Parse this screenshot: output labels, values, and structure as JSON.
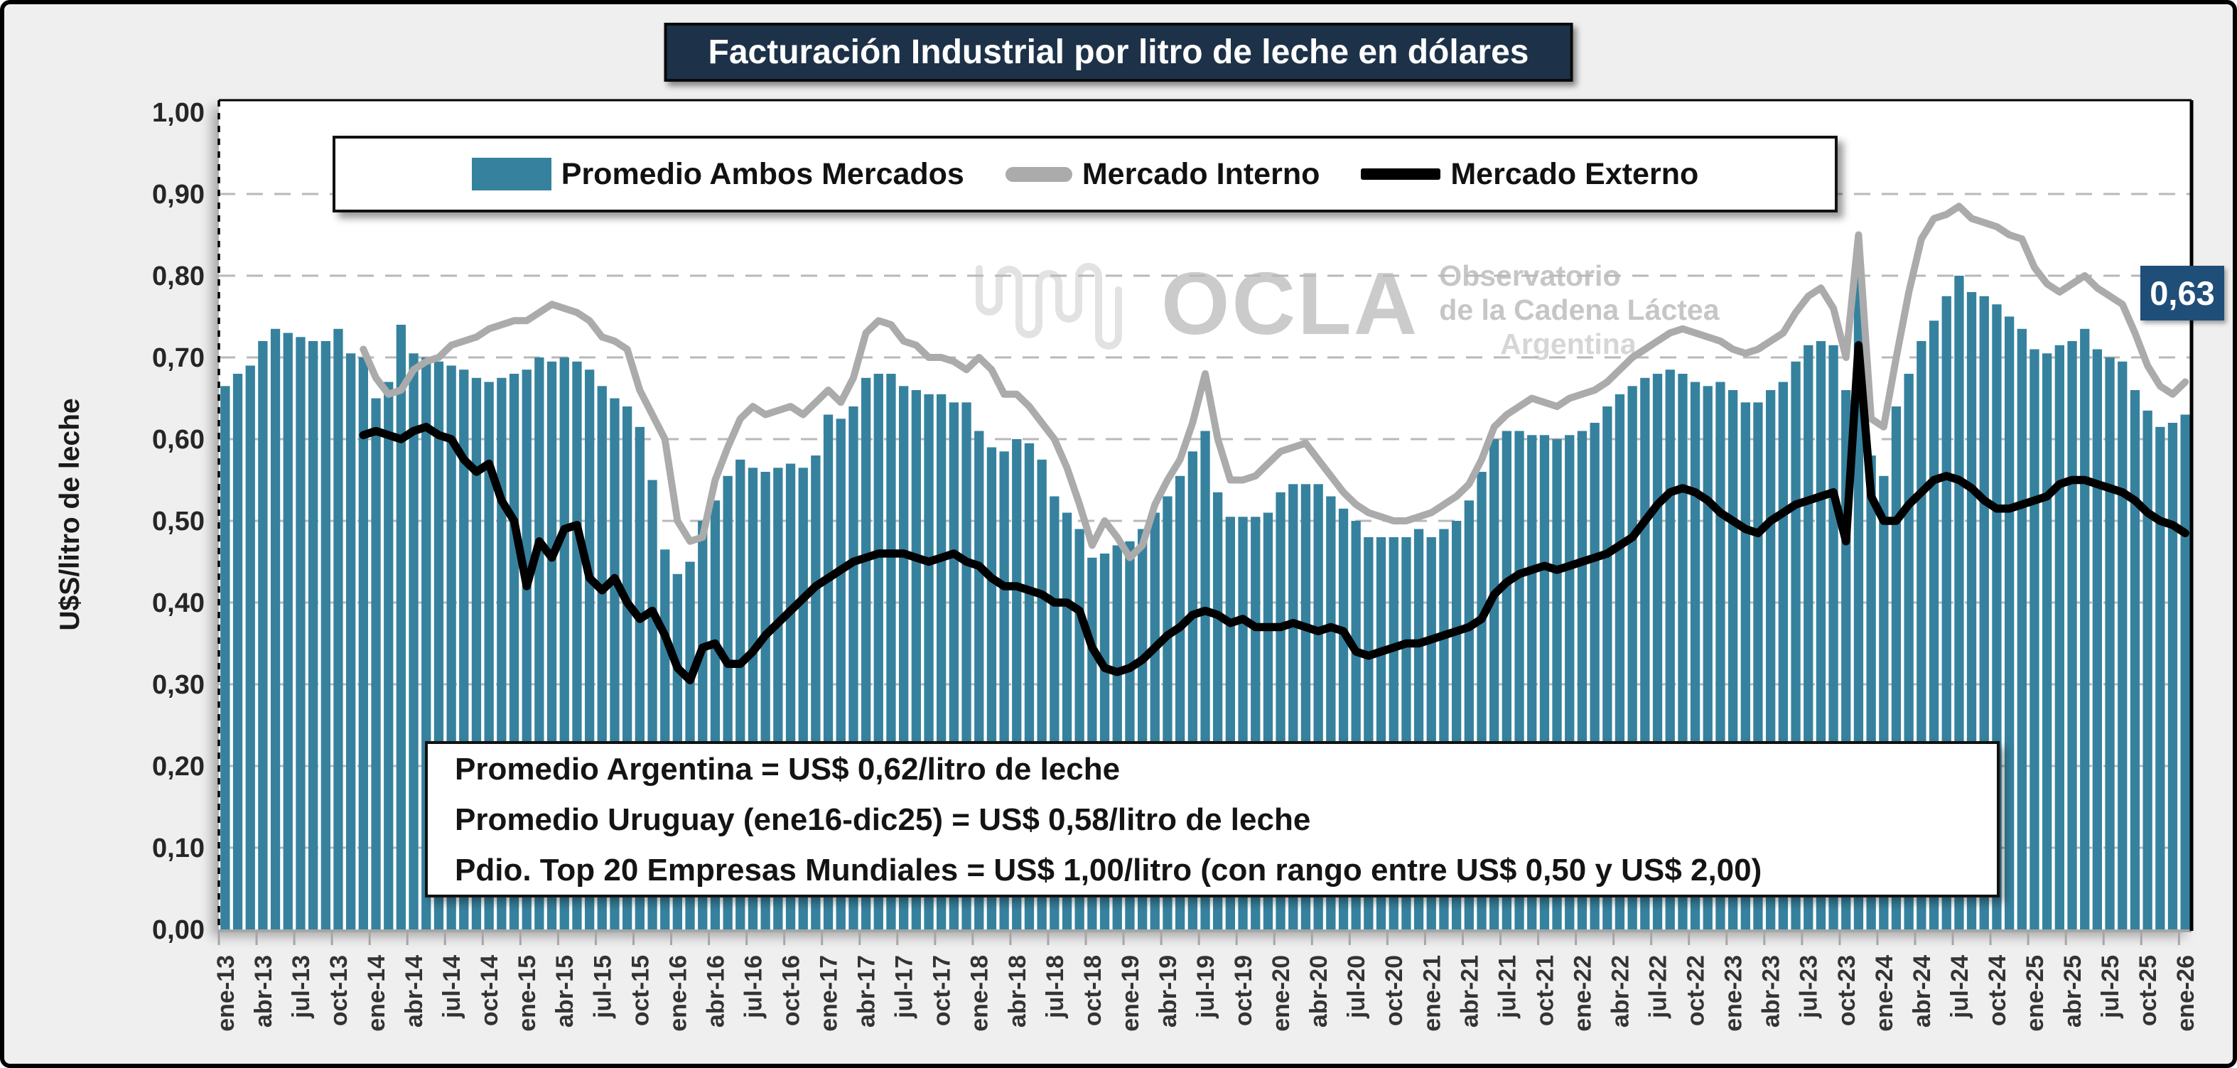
{
  "title": "Facturación Industrial por litro de leche en dólares",
  "watermark": {
    "acronym": "OCLA",
    "line1": "Observatorio",
    "line2": "de la Cadena Láctea",
    "line3": "Argentina"
  },
  "annotation_box": {
    "line1": "Promedio Argentina = US$ 0,62/litro de leche",
    "line2": "Promedio Uruguay (ene16-dic25) = US$ 0,58/litro de leche",
    "line3": "Pdio. Top 20 Empresas Mundiales = US$ 1,00/litro (con rango entre US$ 0,50 y US$ 2,00)"
  },
  "last_value_label": "0,63",
  "colors": {
    "bar": "#36829E",
    "line_interno": "#ABABAB",
    "line_externo": "#000000",
    "title_bg": "#1d3248",
    "callout_bg": "#1f4e79",
    "grid": "#b8b8b8",
    "axis_gray": "#a6a6a6"
  },
  "chart_data": {
    "type": "bar",
    "subtype": "combo-bar-and-lines",
    "title": "Facturación Industrial por litro de leche en dólares",
    "xlabel": "",
    "ylabel": "U$S/litro de leche",
    "ylim": [
      0.0,
      1.0
    ],
    "y_tick_step": 0.1,
    "y_tick_labels": [
      "0,00",
      "0,10",
      "0,20",
      "0,30",
      "0,40",
      "0,50",
      "0,60",
      "0,70",
      "0,80",
      "0,90",
      "1,00"
    ],
    "grid": "dashed-horizontal",
    "legend_position": "top-inside",
    "x_monthly_start": "ene-13",
    "x_monthly_end": "ene-26",
    "months_count": 157,
    "x_tick_labels": [
      "ene-13",
      "abr-13",
      "jul-13",
      "oct-13",
      "ene-14",
      "abr-14",
      "jul-14",
      "oct-14",
      "ene-15",
      "abr-15",
      "jul-15",
      "oct-15",
      "ene-16",
      "abr-16",
      "jul-16",
      "oct-16",
      "ene-17",
      "abr-17",
      "jul-17",
      "oct-17",
      "ene-18",
      "abr-18",
      "jul-18",
      "oct-18",
      "ene-19",
      "abr-19",
      "jul-19",
      "oct-19",
      "ene-20",
      "abr-20",
      "jul-20",
      "oct-20",
      "ene-21",
      "abr-21",
      "jul-21",
      "oct-21",
      "ene-22",
      "abr-22",
      "jul-22",
      "oct-22",
      "ene-23",
      "abr-23",
      "jul-23",
      "oct-23",
      "ene-24",
      "abr-24",
      "jul-24",
      "oct-24",
      "ene-25",
      "abr-25",
      "jul-25",
      "oct-25",
      "ene-26"
    ],
    "series": [
      {
        "name": "Promedio Ambos Mercados",
        "type": "bar",
        "color": "#36829E",
        "values": [
          0.665,
          0.68,
          0.69,
          0.72,
          0.735,
          0.73,
          0.725,
          0.72,
          0.72,
          0.735,
          0.705,
          0.7,
          0.65,
          0.67,
          0.74,
          0.705,
          0.7,
          0.695,
          0.69,
          0.685,
          0.675,
          0.67,
          0.675,
          0.68,
          0.685,
          0.7,
          0.695,
          0.7,
          0.695,
          0.685,
          0.665,
          0.65,
          0.64,
          0.615,
          0.55,
          0.465,
          0.435,
          0.45,
          0.5,
          0.525,
          0.555,
          0.575,
          0.565,
          0.56,
          0.565,
          0.57,
          0.565,
          0.58,
          0.63,
          0.625,
          0.64,
          0.675,
          0.68,
          0.68,
          0.665,
          0.66,
          0.655,
          0.655,
          0.645,
          0.645,
          0.61,
          0.59,
          0.585,
          0.6,
          0.595,
          0.575,
          0.53,
          0.51,
          0.49,
          0.455,
          0.46,
          0.47,
          0.475,
          0.49,
          0.51,
          0.53,
          0.555,
          0.585,
          0.61,
          0.535,
          0.505,
          0.505,
          0.505,
          0.51,
          0.535,
          0.545,
          0.545,
          0.545,
          0.53,
          0.515,
          0.5,
          0.48,
          0.48,
          0.48,
          0.48,
          0.49,
          0.48,
          0.49,
          0.5,
          0.525,
          0.56,
          0.6,
          0.61,
          0.61,
          0.605,
          0.605,
          0.6,
          0.605,
          0.61,
          0.62,
          0.64,
          0.655,
          0.665,
          0.675,
          0.68,
          0.685,
          0.68,
          0.67,
          0.665,
          0.67,
          0.66,
          0.645,
          0.645,
          0.66,
          0.67,
          0.695,
          0.715,
          0.72,
          0.715,
          0.66,
          0.81,
          0.58,
          0.555,
          0.64,
          0.68,
          0.72,
          0.745,
          0.775,
          0.8,
          0.78,
          0.775,
          0.765,
          0.75,
          0.735,
          0.71,
          0.705,
          0.715,
          0.72,
          0.735,
          0.71,
          0.7,
          0.695,
          0.66,
          0.635,
          0.615,
          0.62,
          0.63
        ]
      },
      {
        "name": "Mercado Interno",
        "type": "line",
        "color": "#ABABAB",
        "values": [
          null,
          null,
          null,
          null,
          null,
          null,
          null,
          null,
          null,
          null,
          null,
          0.71,
          0.675,
          0.655,
          0.66,
          0.685,
          0.695,
          0.7,
          0.715,
          0.72,
          0.725,
          0.735,
          0.74,
          0.745,
          0.745,
          0.755,
          0.765,
          0.76,
          0.755,
          0.745,
          0.725,
          0.72,
          0.71,
          0.66,
          0.63,
          0.6,
          0.5,
          0.475,
          0.48,
          0.55,
          0.59,
          0.625,
          0.64,
          0.63,
          0.635,
          0.64,
          0.63,
          0.645,
          0.66,
          0.645,
          0.675,
          0.73,
          0.745,
          0.74,
          0.72,
          0.715,
          0.7,
          0.7,
          0.695,
          0.685,
          0.7,
          0.685,
          0.655,
          0.655,
          0.64,
          0.62,
          0.6,
          0.565,
          0.52,
          0.47,
          0.5,
          0.48,
          0.455,
          0.47,
          0.52,
          0.55,
          0.575,
          0.62,
          0.68,
          0.6,
          0.55,
          0.55,
          0.555,
          0.57,
          0.585,
          0.59,
          0.595,
          0.575,
          0.555,
          0.535,
          0.52,
          0.51,
          0.505,
          0.5,
          0.5,
          0.505,
          0.51,
          0.52,
          0.53,
          0.545,
          0.575,
          0.615,
          0.63,
          0.64,
          0.65,
          0.645,
          0.64,
          0.65,
          0.655,
          0.66,
          0.67,
          0.685,
          0.7,
          0.71,
          0.72,
          0.73,
          0.735,
          0.73,
          0.725,
          0.72,
          0.71,
          0.705,
          0.71,
          0.72,
          0.73,
          0.755,
          0.775,
          0.785,
          0.76,
          0.7,
          0.85,
          0.625,
          0.615,
          0.7,
          0.78,
          0.845,
          0.87,
          0.875,
          0.885,
          0.87,
          0.865,
          0.86,
          0.85,
          0.845,
          0.81,
          0.79,
          0.78,
          0.79,
          0.8,
          0.785,
          0.775,
          0.765,
          0.73,
          0.69,
          0.665,
          0.655,
          0.67
        ]
      },
      {
        "name": "Mercado Externo",
        "type": "line",
        "color": "#000000",
        "values": [
          null,
          null,
          null,
          null,
          null,
          null,
          null,
          null,
          null,
          null,
          null,
          0.605,
          0.61,
          0.605,
          0.6,
          0.61,
          0.615,
          0.605,
          0.6,
          0.575,
          0.56,
          0.57,
          0.525,
          0.5,
          0.42,
          0.475,
          0.455,
          0.49,
          0.495,
          0.43,
          0.415,
          0.43,
          0.4,
          0.38,
          0.39,
          0.36,
          0.32,
          0.305,
          0.345,
          0.35,
          0.325,
          0.325,
          0.34,
          0.36,
          0.375,
          0.39,
          0.405,
          0.42,
          0.43,
          0.44,
          0.45,
          0.455,
          0.46,
          0.46,
          0.46,
          0.455,
          0.45,
          0.455,
          0.46,
          0.45,
          0.445,
          0.43,
          0.42,
          0.42,
          0.415,
          0.41,
          0.4,
          0.4,
          0.39,
          0.345,
          0.32,
          0.315,
          0.32,
          0.33,
          0.345,
          0.36,
          0.37,
          0.385,
          0.39,
          0.385,
          0.375,
          0.38,
          0.37,
          0.37,
          0.37,
          0.375,
          0.37,
          0.365,
          0.37,
          0.365,
          0.34,
          0.335,
          0.34,
          0.345,
          0.35,
          0.35,
          0.355,
          0.36,
          0.365,
          0.37,
          0.38,
          0.41,
          0.425,
          0.435,
          0.44,
          0.445,
          0.44,
          0.445,
          0.45,
          0.455,
          0.46,
          0.47,
          0.48,
          0.5,
          0.52,
          0.535,
          0.54,
          0.535,
          0.525,
          0.51,
          0.5,
          0.49,
          0.485,
          0.5,
          0.51,
          0.52,
          0.525,
          0.53,
          0.535,
          0.475,
          0.715,
          0.53,
          0.5,
          0.5,
          0.52,
          0.535,
          0.55,
          0.555,
          0.55,
          0.54,
          0.525,
          0.515,
          0.515,
          0.52,
          0.525,
          0.53,
          0.545,
          0.55,
          0.55,
          0.545,
          0.54,
          0.535,
          0.525,
          0.51,
          0.5,
          0.495,
          0.485
        ]
      }
    ]
  }
}
